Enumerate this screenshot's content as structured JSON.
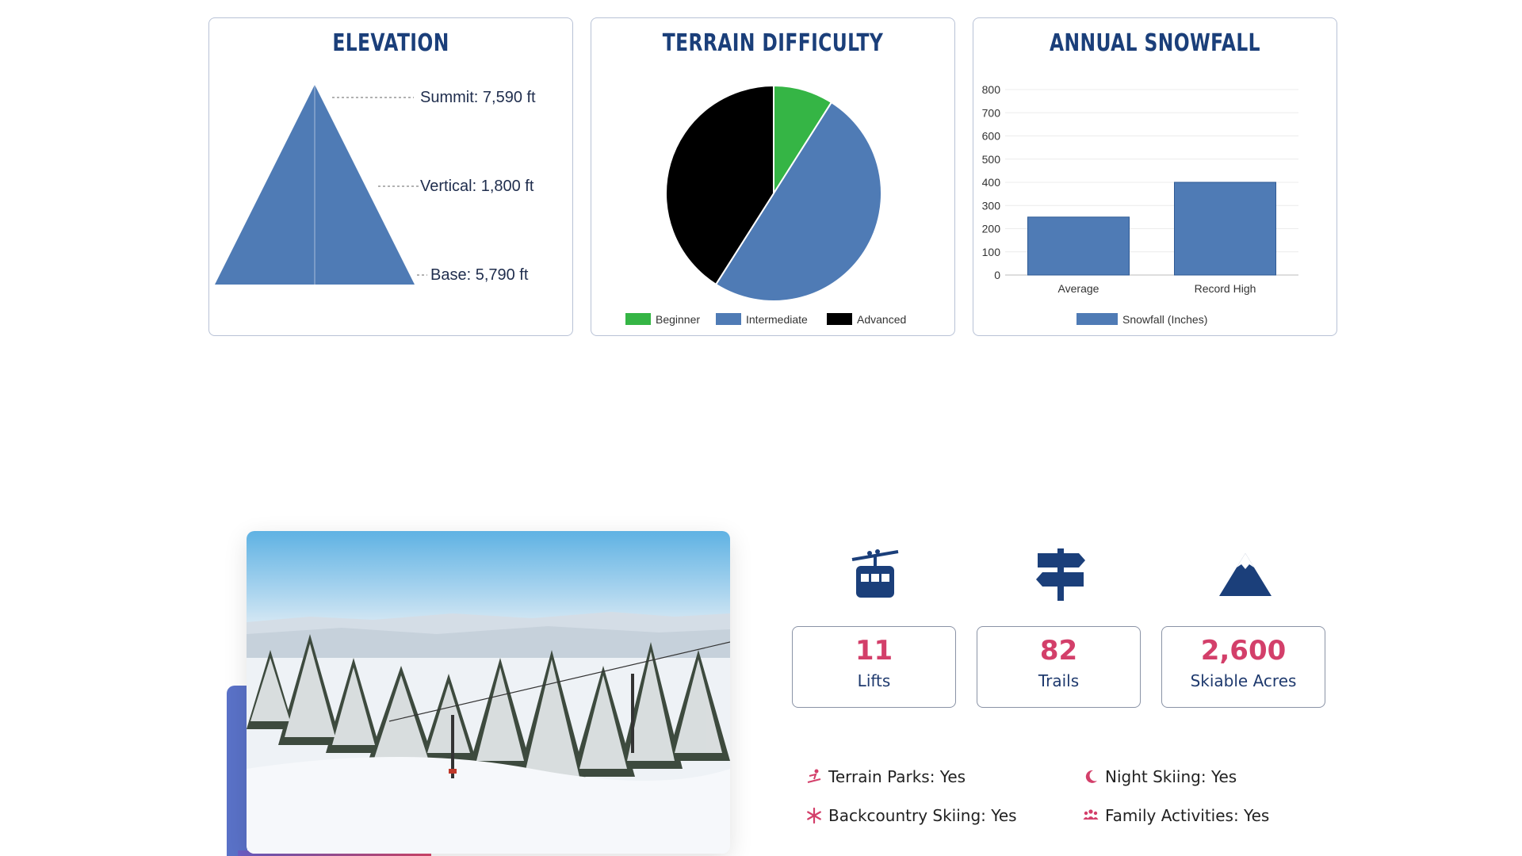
{
  "elevation": {
    "title": "ELEVATION",
    "summit": "Summit: 7,590 ft",
    "vertical": "Vertical: 1,800 ft",
    "base": "Base: 5,790 ft",
    "color": "#4f7bb5"
  },
  "terrain": {
    "title": "TERRAIN DIFFICULTY"
  },
  "snowfall": {
    "title": "ANNUAL SNOWFALL"
  },
  "chart_data": [
    {
      "type": "pie",
      "title": "TERRAIN DIFFICULTY",
      "categories": [
        "Beginner",
        "Intermediate",
        "Advanced"
      ],
      "values": [
        9,
        50,
        41
      ],
      "colors": [
        "#35b545",
        "#4f7bb5",
        "#000000"
      ],
      "legend": "bottom"
    },
    {
      "type": "bar",
      "title": "ANNUAL SNOWFALL",
      "categories": [
        "Average",
        "Record High"
      ],
      "series": [
        {
          "name": "Snowfall (Inches)",
          "values": [
            250,
            400
          ]
        }
      ],
      "ylim": [
        0,
        800
      ],
      "yticks": [
        0,
        100,
        200,
        300,
        400,
        500,
        600,
        700,
        800
      ],
      "grid": true,
      "legend": "bottom",
      "color": "#4f7bb5"
    }
  ],
  "stats": [
    {
      "icon": "gondola-icon",
      "value": "11",
      "label": "Lifts"
    },
    {
      "icon": "signpost-icon",
      "value": "82",
      "label": "Trails"
    },
    {
      "icon": "mountain-icon",
      "value": "2,600",
      "label": "Skiable Acres"
    }
  ],
  "features": [
    {
      "icon": "snowboarder-icon",
      "label": "Terrain Parks: Yes"
    },
    {
      "icon": "moon-icon",
      "label": "Night Skiing: Yes"
    },
    {
      "icon": "snowflake-icon",
      "label": "Backcountry Skiing: Yes"
    },
    {
      "icon": "family-icon",
      "label": "Family Activities: Yes"
    }
  ],
  "colors": {
    "navy": "#1b3f7a",
    "accent_pink": "#d33f6a",
    "chart_blue": "#4f7bb5"
  }
}
